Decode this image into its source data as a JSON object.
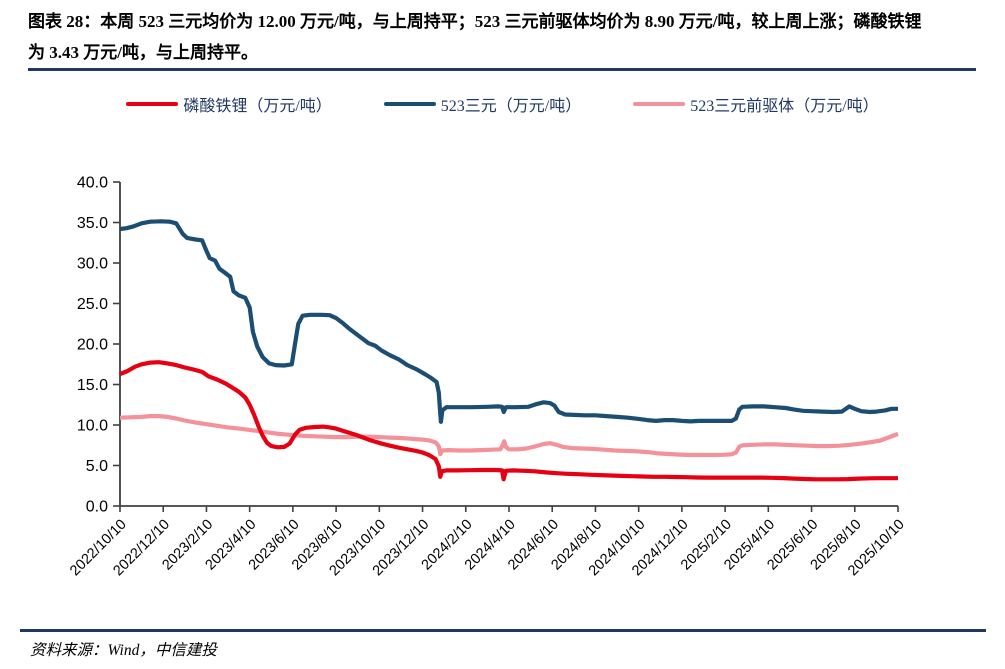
{
  "header": {
    "line1": "图表 28：本周 523 三元均价为 12.00 万元/吨，与上周持平；523 三元前驱体均价为 8.90 万元/吨，较上周上涨；磷酸铁锂",
    "line2": "为 3.43 万元/吨，与上周持平。"
  },
  "footer": {
    "source": "资料来源：Wind，中信建投"
  },
  "colors": {
    "rule": "#1f3864",
    "axis": "#404040",
    "legend_text": "#1f3864"
  },
  "chart_data": {
    "type": "line",
    "title": "",
    "xlabel": "",
    "ylabel": "",
    "ylim": [
      0,
      40
    ],
    "y_ticks": [
      0,
      5,
      10,
      15,
      20,
      25,
      30,
      35,
      40
    ],
    "grid": false,
    "legend_position": "top",
    "x_range_months": [
      0,
      36
    ],
    "x_tick_interval_months": 2,
    "x_tick_labels": [
      "2022/10/10",
      "2022/12/10",
      "2023/2/10",
      "2023/4/10",
      "2023/6/10",
      "2023/8/10",
      "2023/10/10",
      "2023/12/10",
      "2024/2/10",
      "2024/4/10",
      "2024/6/10",
      "2024/8/10",
      "2024/10/10",
      "2024/12/10",
      "2025/2/10",
      "2025/4/10",
      "2025/6/10",
      "2025/8/10",
      "2025/10/10"
    ],
    "series": [
      {
        "name": "磷酸铁锂（万元/吨）",
        "color": "#e60012",
        "latest_value": 3.43,
        "points": [
          [
            0,
            16.3
          ],
          [
            0.3,
            16.6
          ],
          [
            0.7,
            17.2
          ],
          [
            1,
            17.5
          ],
          [
            1.4,
            17.7
          ],
          [
            1.8,
            17.75
          ],
          [
            2.2,
            17.6
          ],
          [
            2.6,
            17.4
          ],
          [
            3,
            17.1
          ],
          [
            3.4,
            16.85
          ],
          [
            3.8,
            16.55
          ],
          [
            4.1,
            16.0
          ],
          [
            4.5,
            15.6
          ],
          [
            4.9,
            15.1
          ],
          [
            5.2,
            14.6
          ],
          [
            5.5,
            14.1
          ],
          [
            5.8,
            13.4
          ],
          [
            6,
            12.5
          ],
          [
            6.2,
            11.3
          ],
          [
            6.4,
            9.9
          ],
          [
            6.6,
            8.7
          ],
          [
            6.8,
            7.8
          ],
          [
            7,
            7.4
          ],
          [
            7.3,
            7.25
          ],
          [
            7.6,
            7.3
          ],
          [
            7.85,
            7.7
          ],
          [
            8.1,
            8.8
          ],
          [
            8.3,
            9.4
          ],
          [
            8.6,
            9.65
          ],
          [
            9,
            9.75
          ],
          [
            9.4,
            9.8
          ],
          [
            9.7,
            9.7
          ],
          [
            10,
            9.55
          ],
          [
            10.3,
            9.3
          ],
          [
            10.6,
            9.05
          ],
          [
            10.9,
            8.8
          ],
          [
            11.2,
            8.5
          ],
          [
            11.5,
            8.2
          ],
          [
            11.8,
            7.95
          ],
          [
            12.1,
            7.7
          ],
          [
            12.5,
            7.45
          ],
          [
            12.9,
            7.2
          ],
          [
            13.3,
            7.0
          ],
          [
            13.7,
            6.8
          ],
          [
            14,
            6.6
          ],
          [
            14.3,
            6.3
          ],
          [
            14.6,
            5.8
          ],
          [
            14.75,
            4.9
          ],
          [
            14.82,
            3.6
          ],
          [
            14.9,
            4.3
          ],
          [
            15.1,
            4.4
          ],
          [
            15.6,
            4.4
          ],
          [
            16.2,
            4.42
          ],
          [
            16.8,
            4.45
          ],
          [
            17.4,
            4.45
          ],
          [
            17.68,
            4.4
          ],
          [
            17.75,
            3.3
          ],
          [
            17.85,
            4.35
          ],
          [
            18.2,
            4.4
          ],
          [
            18.7,
            4.35
          ],
          [
            19.2,
            4.28
          ],
          [
            19.7,
            4.15
          ],
          [
            20.2,
            4.05
          ],
          [
            20.7,
            3.98
          ],
          [
            21.2,
            3.92
          ],
          [
            21.7,
            3.87
          ],
          [
            22.2,
            3.82
          ],
          [
            22.7,
            3.77
          ],
          [
            23.2,
            3.72
          ],
          [
            23.7,
            3.68
          ],
          [
            24.2,
            3.64
          ],
          [
            24.7,
            3.6
          ],
          [
            25.2,
            3.6
          ],
          [
            25.7,
            3.58
          ],
          [
            26.2,
            3.55
          ],
          [
            26.7,
            3.52
          ],
          [
            27.2,
            3.5
          ],
          [
            27.7,
            3.5
          ],
          [
            28.2,
            3.5
          ],
          [
            28.7,
            3.5
          ],
          [
            29.2,
            3.5
          ],
          [
            29.7,
            3.5
          ],
          [
            30.2,
            3.48
          ],
          [
            30.7,
            3.44
          ],
          [
            31.2,
            3.38
          ],
          [
            31.7,
            3.33
          ],
          [
            32.2,
            3.3
          ],
          [
            32.7,
            3.3
          ],
          [
            33.2,
            3.3
          ],
          [
            33.7,
            3.32
          ],
          [
            34.2,
            3.38
          ],
          [
            34.7,
            3.42
          ],
          [
            35.2,
            3.43
          ],
          [
            36,
            3.43
          ]
        ]
      },
      {
        "name": "523三元（万元/吨）",
        "color": "#1b4e72",
        "latest_value": 12.0,
        "points": [
          [
            0,
            34.2
          ],
          [
            0.3,
            34.3
          ],
          [
            0.6,
            34.5
          ],
          [
            1,
            34.9
          ],
          [
            1.4,
            35.1
          ],
          [
            1.9,
            35.15
          ],
          [
            2.3,
            35.1
          ],
          [
            2.6,
            34.9
          ],
          [
            2.9,
            33.6
          ],
          [
            3.1,
            33.1
          ],
          [
            3.5,
            32.9
          ],
          [
            3.8,
            32.8
          ],
          [
            4,
            31.5
          ],
          [
            4.15,
            30.6
          ],
          [
            4.4,
            30.3
          ],
          [
            4.6,
            29.3
          ],
          [
            4.9,
            28.7
          ],
          [
            5.1,
            28.3
          ],
          [
            5.25,
            26.5
          ],
          [
            5.5,
            26.0
          ],
          [
            5.8,
            25.7
          ],
          [
            6,
            24.5
          ],
          [
            6.15,
            21.5
          ],
          [
            6.35,
            19.7
          ],
          [
            6.6,
            18.4
          ],
          [
            6.9,
            17.6
          ],
          [
            7.2,
            17.4
          ],
          [
            7.6,
            17.35
          ],
          [
            7.95,
            17.5
          ],
          [
            8.1,
            20.0
          ],
          [
            8.25,
            22.5
          ],
          [
            8.45,
            23.5
          ],
          [
            8.8,
            23.6
          ],
          [
            9.3,
            23.6
          ],
          [
            9.7,
            23.55
          ],
          [
            10,
            23.2
          ],
          [
            10.3,
            22.6
          ],
          [
            10.6,
            21.9
          ],
          [
            10.9,
            21.3
          ],
          [
            11.2,
            20.7
          ],
          [
            11.5,
            20.1
          ],
          [
            11.8,
            19.8
          ],
          [
            12.1,
            19.2
          ],
          [
            12.5,
            18.6
          ],
          [
            12.9,
            18.1
          ],
          [
            13.3,
            17.4
          ],
          [
            13.7,
            16.9
          ],
          [
            14.1,
            16.3
          ],
          [
            14.4,
            15.8
          ],
          [
            14.65,
            15.3
          ],
          [
            14.75,
            14.0
          ],
          [
            14.8,
            12.2
          ],
          [
            14.85,
            10.4
          ],
          [
            14.92,
            11.8
          ],
          [
            15.1,
            12.2
          ],
          [
            15.7,
            12.2
          ],
          [
            16.3,
            12.2
          ],
          [
            17,
            12.25
          ],
          [
            17.5,
            12.3
          ],
          [
            17.68,
            12.25
          ],
          [
            17.76,
            11.6
          ],
          [
            17.85,
            12.2
          ],
          [
            18.3,
            12.2
          ],
          [
            18.9,
            12.25
          ],
          [
            19.3,
            12.6
          ],
          [
            19.6,
            12.8
          ],
          [
            19.9,
            12.7
          ],
          [
            20.1,
            12.4
          ],
          [
            20.3,
            11.6
          ],
          [
            20.6,
            11.3
          ],
          [
            21,
            11.25
          ],
          [
            21.5,
            11.2
          ],
          [
            22,
            11.2
          ],
          [
            22.5,
            11.1
          ],
          [
            23,
            11.0
          ],
          [
            23.5,
            10.9
          ],
          [
            24,
            10.75
          ],
          [
            24.4,
            10.6
          ],
          [
            24.8,
            10.5
          ],
          [
            25.2,
            10.6
          ],
          [
            25.6,
            10.6
          ],
          [
            26,
            10.5
          ],
          [
            26.4,
            10.45
          ],
          [
            26.8,
            10.5
          ],
          [
            27.3,
            10.5
          ],
          [
            27.8,
            10.5
          ],
          [
            28.3,
            10.5
          ],
          [
            28.5,
            10.8
          ],
          [
            28.65,
            11.9
          ],
          [
            28.8,
            12.25
          ],
          [
            29.3,
            12.3
          ],
          [
            29.8,
            12.3
          ],
          [
            30.3,
            12.2
          ],
          [
            30.8,
            12.1
          ],
          [
            31.2,
            11.9
          ],
          [
            31.6,
            11.75
          ],
          [
            32,
            11.7
          ],
          [
            32.5,
            11.65
          ],
          [
            33,
            11.6
          ],
          [
            33.4,
            11.65
          ],
          [
            33.75,
            12.3
          ],
          [
            34,
            12.0
          ],
          [
            34.3,
            11.7
          ],
          [
            34.7,
            11.6
          ],
          [
            35,
            11.65
          ],
          [
            35.4,
            11.8
          ],
          [
            35.7,
            12.0
          ],
          [
            36,
            12.0
          ]
        ]
      },
      {
        "name": "523三元前驱体（万元/吨）",
        "color": "#f4929b",
        "latest_value": 8.9,
        "points": [
          [
            0,
            10.9
          ],
          [
            0.5,
            10.95
          ],
          [
            1,
            11.0
          ],
          [
            1.4,
            11.1
          ],
          [
            1.8,
            11.1
          ],
          [
            2.2,
            11.0
          ],
          [
            2.6,
            10.8
          ],
          [
            3,
            10.55
          ],
          [
            3.5,
            10.3
          ],
          [
            4,
            10.1
          ],
          [
            4.5,
            9.9
          ],
          [
            5,
            9.7
          ],
          [
            5.5,
            9.55
          ],
          [
            6,
            9.4
          ],
          [
            6.4,
            9.25
          ],
          [
            6.8,
            9.1
          ],
          [
            7.2,
            8.95
          ],
          [
            7.6,
            8.85
          ],
          [
            8,
            8.75
          ],
          [
            8.5,
            8.65
          ],
          [
            9,
            8.6
          ],
          [
            9.5,
            8.55
          ],
          [
            10,
            8.5
          ],
          [
            10.5,
            8.5
          ],
          [
            11,
            8.55
          ],
          [
            11.5,
            8.55
          ],
          [
            12,
            8.5
          ],
          [
            12.5,
            8.45
          ],
          [
            13,
            8.4
          ],
          [
            13.5,
            8.3
          ],
          [
            14,
            8.2
          ],
          [
            14.3,
            8.1
          ],
          [
            14.6,
            7.85
          ],
          [
            14.75,
            7.4
          ],
          [
            14.82,
            6.4
          ],
          [
            14.9,
            6.85
          ],
          [
            15.2,
            6.9
          ],
          [
            15.7,
            6.85
          ],
          [
            16.2,
            6.85
          ],
          [
            16.7,
            6.9
          ],
          [
            17.2,
            6.95
          ],
          [
            17.6,
            7.0
          ],
          [
            17.72,
            7.55
          ],
          [
            17.78,
            8.0
          ],
          [
            17.85,
            7.3
          ],
          [
            18,
            7.0
          ],
          [
            18.4,
            7.0
          ],
          [
            18.8,
            7.1
          ],
          [
            19.2,
            7.35
          ],
          [
            19.6,
            7.65
          ],
          [
            19.9,
            7.75
          ],
          [
            20.2,
            7.55
          ],
          [
            20.5,
            7.3
          ],
          [
            20.9,
            7.15
          ],
          [
            21.4,
            7.1
          ],
          [
            21.9,
            7.05
          ],
          [
            22.4,
            6.95
          ],
          [
            22.9,
            6.85
          ],
          [
            23.4,
            6.8
          ],
          [
            23.9,
            6.75
          ],
          [
            24.4,
            6.65
          ],
          [
            24.9,
            6.5
          ],
          [
            25.4,
            6.42
          ],
          [
            25.9,
            6.35
          ],
          [
            26.4,
            6.3
          ],
          [
            26.9,
            6.3
          ],
          [
            27.4,
            6.3
          ],
          [
            27.9,
            6.32
          ],
          [
            28.3,
            6.38
          ],
          [
            28.5,
            6.6
          ],
          [
            28.65,
            7.3
          ],
          [
            28.8,
            7.5
          ],
          [
            29.3,
            7.55
          ],
          [
            29.8,
            7.6
          ],
          [
            30.3,
            7.6
          ],
          [
            30.8,
            7.55
          ],
          [
            31.3,
            7.5
          ],
          [
            31.8,
            7.45
          ],
          [
            32.3,
            7.4
          ],
          [
            32.8,
            7.4
          ],
          [
            33.3,
            7.45
          ],
          [
            33.8,
            7.55
          ],
          [
            34.3,
            7.7
          ],
          [
            34.8,
            7.9
          ],
          [
            35.2,
            8.1
          ],
          [
            35.6,
            8.5
          ],
          [
            36,
            8.9
          ]
        ]
      }
    ]
  }
}
